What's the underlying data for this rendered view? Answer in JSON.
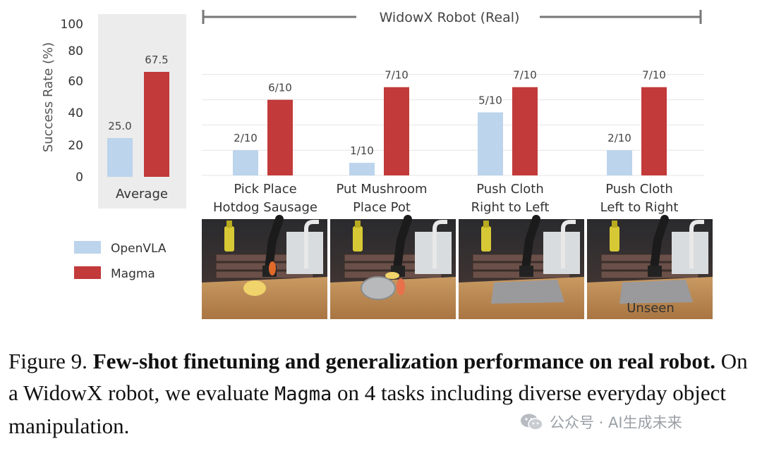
{
  "chart_data": {
    "type": "bar",
    "ylabel": "Success Rate (%)",
    "ylim": [
      0,
      100
    ],
    "yticks": [
      "0",
      "20",
      "40",
      "60",
      "80",
      "100"
    ],
    "group_title": "WidowX Robot (Real)",
    "series": [
      {
        "name": "OpenVLA",
        "color": "#bcd4ec"
      },
      {
        "name": "Magma",
        "color": "#c23a3a"
      }
    ],
    "average": {
      "label": "Average",
      "values": [
        25.0,
        67.5
      ],
      "value_labels": [
        "25.0",
        "67.5"
      ]
    },
    "tasks": [
      {
        "label_lines": [
          "Pick Place",
          "Hotdog Sausage"
        ],
        "values": [
          20,
          60
        ],
        "value_labels": [
          "2/10",
          "6/10"
        ]
      },
      {
        "label_lines": [
          "Put Mushroom",
          "Place Pot"
        ],
        "values": [
          10,
          70
        ],
        "value_labels": [
          "1/10",
          "7/10"
        ]
      },
      {
        "label_lines": [
          "Push Cloth",
          "Right to Left"
        ],
        "values": [
          50,
          70
        ],
        "value_labels": [
          "5/10",
          "7/10"
        ]
      },
      {
        "label_lines": [
          "Push Cloth",
          "Left to Right"
        ],
        "values": [
          20,
          70
        ],
        "value_labels": [
          "2/10",
          "7/10"
        ]
      }
    ],
    "photo_overlay": "Unseen"
  },
  "caption": {
    "figure_label": "Figure 9.",
    "bold_text": "Few-shot finetuning and generalization performance on real robot.",
    "text_before_code": " On a WidowX robot, we evaluate ",
    "code_text": "Magma",
    "text_after_code": " on 4 tasks including diverse everyday object manipulation."
  },
  "watermark": {
    "text": "公众号 · AI生成未来"
  },
  "colors": {
    "openvla": "#bcd4ec",
    "magma": "#c23a3a",
    "average_panel": "#ececec",
    "grid": "#e4e4e4"
  }
}
